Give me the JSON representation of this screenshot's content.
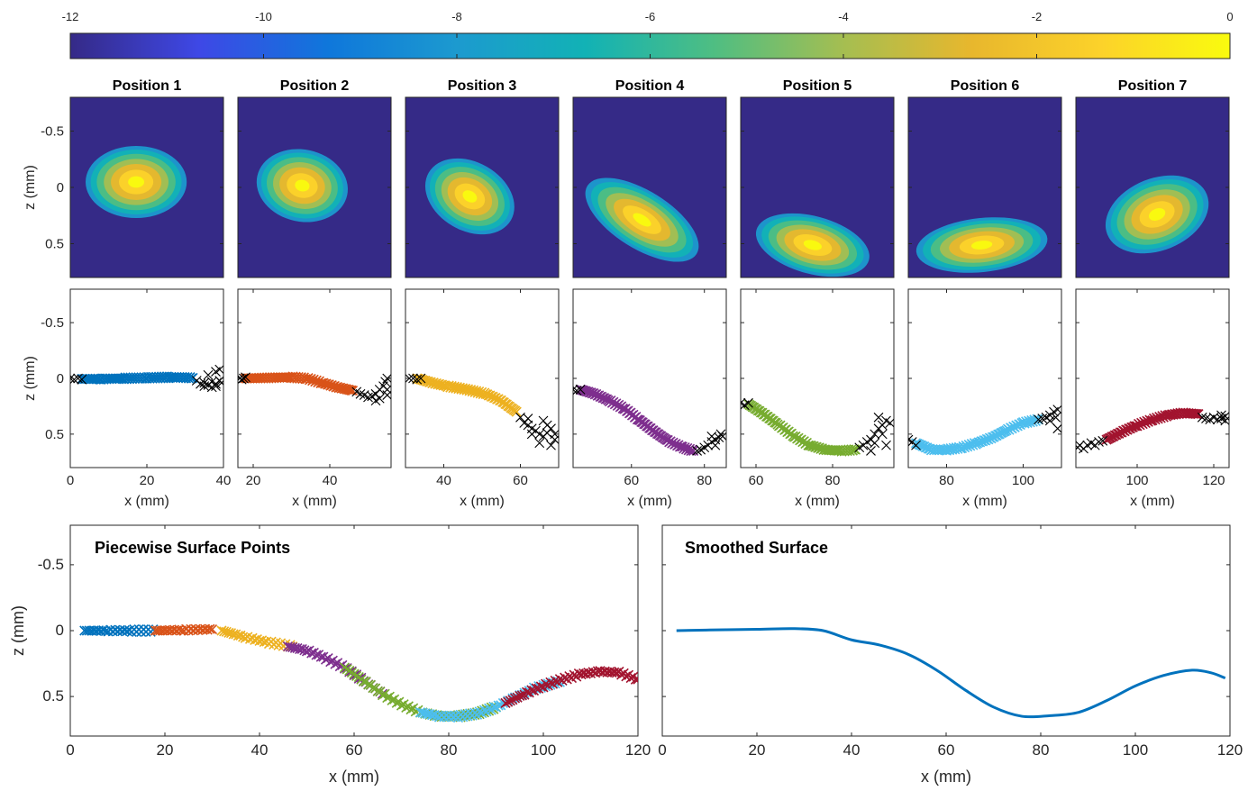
{
  "colorbar": {
    "range": [
      -12,
      0
    ],
    "tick_labels": [
      "-12",
      "-10",
      "-8",
      "-6",
      "-4",
      "-2",
      "0"
    ],
    "colormap": "parula",
    "colormap_stops": [
      "#352a87",
      "#3e48e6",
      "#0f77db",
      "#1c9acf",
      "#12b2b5",
      "#4fbe82",
      "#a5be51",
      "#e8b72d",
      "#fcd22a",
      "#f9fb0e"
    ]
  },
  "top_row": {
    "titles": [
      "Position 1",
      "Position 2",
      "Position 3",
      "Position 4",
      "Position 5",
      "Position 6",
      "Position 7"
    ],
    "ylabel": "z (mm)",
    "ytick_labels": [
      "-0.5",
      "0",
      "0.5"
    ],
    "background_color": "#352a87"
  },
  "middle_row": {
    "ylabel": "z (mm)",
    "xlabel": "x (mm)",
    "ytick_labels": [
      "-0.5",
      "0",
      "0.5"
    ],
    "marker_edge_color": "#000000",
    "series_colors": [
      "#0072bd",
      "#d95319",
      "#edb120",
      "#7e2f8e",
      "#77ac30",
      "#4dbeee",
      "#a2142f"
    ]
  },
  "bottom_left": {
    "title": "Piecewise Surface Points",
    "xlabel": "x (mm)",
    "ylabel": "z (mm)"
  },
  "bottom_right": {
    "title": "Smoothed Surface",
    "xlabel": "x (mm)"
  },
  "chart_data": [
    {
      "type": "heatmap",
      "title": "Position 1",
      "ylabel": "z (mm)",
      "ylim": [
        -0.8,
        0.8
      ],
      "clim": [
        -12,
        0
      ],
      "blob": {
        "center_z": -0.05,
        "shape": "ellipse",
        "orientation": "horizontal"
      }
    },
    {
      "type": "heatmap",
      "title": "Position 2",
      "ylim": [
        -0.8,
        0.8
      ],
      "clim": [
        -12,
        0
      ],
      "blob": {
        "center_z": 0.0,
        "shape": "ellipse",
        "orientation": "slightly tilted"
      }
    },
    {
      "type": "heatmap",
      "title": "Position 3",
      "ylim": [
        -0.8,
        0.8
      ],
      "clim": [
        -12,
        0
      ],
      "blob": {
        "center_z": 0.12,
        "shape": "ellipse",
        "orientation": "tilted down-right"
      }
    },
    {
      "type": "heatmap",
      "title": "Position 4",
      "ylim": [
        -0.8,
        0.8
      ],
      "clim": [
        -12,
        0
      ],
      "blob": {
        "center_z": 0.35,
        "shape": "elongated",
        "orientation": "diagonal down-right"
      }
    },
    {
      "type": "heatmap",
      "title": "Position 5",
      "ylim": [
        -0.8,
        0.8
      ],
      "clim": [
        -12,
        0
      ],
      "blob": {
        "center_z": 0.6,
        "shape": "ellipse",
        "orientation": "bottom"
      }
    },
    {
      "type": "heatmap",
      "title": "Position 6",
      "ylim": [
        -0.8,
        0.8
      ],
      "clim": [
        -12,
        0
      ],
      "blob": {
        "center_z": 0.6,
        "shape": "ellipse",
        "orientation": "bottom, slightly rising right"
      }
    },
    {
      "type": "heatmap",
      "title": "Position 7",
      "ylim": [
        -0.8,
        0.8
      ],
      "clim": [
        -12,
        0
      ],
      "blob": {
        "center_z": 0.35,
        "shape": "ellipse",
        "orientation": "tilted up-right"
      }
    },
    {
      "type": "scatter",
      "xlabel": "x (mm)",
      "ylabel": "z (mm)",
      "xlim": [
        0,
        40
      ],
      "ylim": [
        -0.8,
        0.8
      ],
      "xticks": [
        0,
        20,
        40
      ],
      "xtick_labels": [
        "0",
        "20",
        "40"
      ],
      "yticks": [
        -0.5,
        0,
        0.5
      ],
      "ytick_labels": [
        "-0.5",
        "0",
        "0.5"
      ],
      "color": "#0072bd",
      "points": [
        [
          3,
          0.005
        ],
        [
          8,
          0.005
        ],
        [
          14,
          0.0
        ],
        [
          20,
          -0.005
        ],
        [
          26,
          -0.01
        ],
        [
          32,
          -0.005
        ]
      ],
      "outliers": [
        [
          0,
          0.0
        ],
        [
          1,
          0.01
        ],
        [
          2,
          0.0
        ],
        [
          3,
          0.01
        ],
        [
          33,
          0.02
        ],
        [
          34,
          0.05
        ],
        [
          35,
          0.04
        ],
        [
          36,
          0.06
        ],
        [
          37,
          0.03
        ],
        [
          38,
          0.05
        ],
        [
          39,
          0.02
        ],
        [
          36,
          -0.03
        ],
        [
          38,
          -0.06
        ],
        [
          39,
          -0.08
        ],
        [
          37,
          0.08
        ],
        [
          35,
          0.07
        ],
        [
          38,
          0.07
        ],
        [
          39.5,
          0.04
        ]
      ]
    },
    {
      "type": "scatter",
      "xlabel": "x (mm)",
      "xlim": [
        16,
        56
      ],
      "ylim": [
        -0.8,
        0.8
      ],
      "xticks": [
        20,
        40
      ],
      "xtick_labels": [
        "20",
        "40"
      ],
      "yticks": [
        -0.5,
        0,
        0.5
      ],
      "color": "#d95319",
      "points": [
        [
          18,
          0.0
        ],
        [
          24,
          -0.005
        ],
        [
          30,
          -0.01
        ],
        [
          34,
          0.0
        ],
        [
          38,
          0.04
        ],
        [
          42,
          0.08
        ],
        [
          46,
          0.11
        ]
      ],
      "outliers": [
        [
          16.5,
          0.0
        ],
        [
          17,
          0.01
        ],
        [
          17.5,
          0.0
        ],
        [
          18,
          -0.01
        ],
        [
          47,
          0.12
        ],
        [
          48,
          0.14
        ],
        [
          49,
          0.15
        ],
        [
          50,
          0.17
        ],
        [
          51,
          0.16
        ],
        [
          52,
          0.14
        ],
        [
          53,
          0.1
        ],
        [
          54,
          0.07
        ],
        [
          55,
          0.1
        ],
        [
          54.5,
          0.03
        ],
        [
          55,
          0.0
        ],
        [
          53,
          0.18
        ],
        [
          52,
          0.2
        ],
        [
          55,
          0.15
        ]
      ]
    },
    {
      "type": "scatter",
      "xlabel": "x (mm)",
      "xlim": [
        30,
        70
      ],
      "ylim": [
        -0.8,
        0.8
      ],
      "xticks": [
        40,
        60
      ],
      "xtick_labels": [
        "40",
        "60"
      ],
      "yticks": [
        -0.5,
        0,
        0.5
      ],
      "color": "#edb120",
      "points": [
        [
          33,
          0.0
        ],
        [
          37,
          0.04
        ],
        [
          41,
          0.07
        ],
        [
          46,
          0.1
        ],
        [
          51,
          0.14
        ],
        [
          55,
          0.2
        ],
        [
          59,
          0.3
        ]
      ],
      "outliers": [
        [
          31,
          0.0
        ],
        [
          32,
          0.0
        ],
        [
          33,
          0.01
        ],
        [
          34,
          0.0
        ],
        [
          60,
          0.35
        ],
        [
          61,
          0.4
        ],
        [
          62,
          0.42
        ],
        [
          63,
          0.45
        ],
        [
          64,
          0.47
        ],
        [
          65,
          0.5
        ],
        [
          66,
          0.52
        ],
        [
          67,
          0.49
        ],
        [
          68,
          0.45
        ],
        [
          69,
          0.5
        ],
        [
          66,
          0.38
        ],
        [
          67,
          0.42
        ],
        [
          69,
          0.55
        ],
        [
          68,
          0.6
        ],
        [
          65,
          0.58
        ],
        [
          62,
          0.36
        ],
        [
          63,
          0.5
        ]
      ]
    },
    {
      "type": "scatter",
      "xlabel": "x (mm)",
      "xlim": [
        44,
        86
      ],
      "ylim": [
        -0.8,
        0.8
      ],
      "xticks": [
        60,
        80
      ],
      "xtick_labels": [
        "60",
        "80"
      ],
      "yticks": [
        -0.5,
        0,
        0.5
      ],
      "color": "#7e2f8e",
      "points": [
        [
          46,
          0.1
        ],
        [
          50,
          0.14
        ],
        [
          54,
          0.2
        ],
        [
          58,
          0.27
        ],
        [
          62,
          0.37
        ],
        [
          66,
          0.47
        ],
        [
          70,
          0.56
        ],
        [
          74,
          0.62
        ],
        [
          77,
          0.65
        ]
      ],
      "outliers": [
        [
          44,
          0.1
        ],
        [
          45,
          0.11
        ],
        [
          46,
          0.1
        ],
        [
          78,
          0.65
        ],
        [
          79,
          0.64
        ],
        [
          80,
          0.62
        ],
        [
          81,
          0.6
        ],
        [
          82,
          0.57
        ],
        [
          83,
          0.55
        ],
        [
          84,
          0.53
        ],
        [
          85,
          0.52
        ],
        [
          84.5,
          0.5
        ],
        [
          83,
          0.6
        ],
        [
          82,
          0.52
        ]
      ]
    },
    {
      "type": "scatter",
      "xlabel": "x (mm)",
      "xlim": [
        56,
        96
      ],
      "ylim": [
        -0.8,
        0.8
      ],
      "xticks": [
        60,
        80
      ],
      "xtick_labels": [
        "60",
        "80"
      ],
      "yticks": [
        -0.5,
        0,
        0.5
      ],
      "color": "#77ac30",
      "points": [
        [
          58,
          0.23
        ],
        [
          62,
          0.32
        ],
        [
          66,
          0.42
        ],
        [
          70,
          0.52
        ],
        [
          74,
          0.6
        ],
        [
          78,
          0.64
        ],
        [
          82,
          0.65
        ],
        [
          86,
          0.64
        ]
      ],
      "outliers": [
        [
          56,
          0.22
        ],
        [
          57,
          0.24
        ],
        [
          58,
          0.22
        ],
        [
          87,
          0.62
        ],
        [
          88,
          0.6
        ],
        [
          89,
          0.57
        ],
        [
          90,
          0.55
        ],
        [
          91,
          0.5
        ],
        [
          92,
          0.45
        ],
        [
          93,
          0.42
        ],
        [
          94,
          0.38
        ],
        [
          95,
          0.4
        ],
        [
          93,
          0.5
        ],
        [
          94,
          0.6
        ],
        [
          92,
          0.35
        ],
        [
          91,
          0.58
        ],
        [
          90,
          0.65
        ]
      ]
    },
    {
      "type": "scatter",
      "xlabel": "x (mm)",
      "xlim": [
        70,
        110
      ],
      "ylim": [
        -0.8,
        0.8
      ],
      "xticks": [
        80,
        100
      ],
      "xtick_labels": [
        "80",
        "100"
      ],
      "yticks": [
        -0.5,
        0,
        0.5
      ],
      "color": "#4dbeee",
      "points": [
        [
          72,
          0.58
        ],
        [
          76,
          0.64
        ],
        [
          80,
          0.64
        ],
        [
          84,
          0.62
        ],
        [
          88,
          0.58
        ],
        [
          92,
          0.53
        ],
        [
          96,
          0.46
        ],
        [
          100,
          0.4
        ],
        [
          104,
          0.37
        ]
      ],
      "outliers": [
        [
          70,
          0.55
        ],
        [
          71,
          0.57
        ],
        [
          72,
          0.6
        ],
        [
          104,
          0.37
        ],
        [
          105,
          0.36
        ],
        [
          106,
          0.35
        ],
        [
          107,
          0.33
        ],
        [
          108,
          0.3
        ],
        [
          109,
          0.28
        ],
        [
          108.5,
          0.35
        ],
        [
          107,
          0.38
        ],
        [
          109,
          0.45
        ]
      ]
    },
    {
      "type": "scatter",
      "xlabel": "x (mm)",
      "xlim": [
        84,
        124
      ],
      "ylim": [
        -0.8,
        0.8
      ],
      "xticks": [
        100,
        120
      ],
      "xtick_labels": [
        "100",
        "120"
      ],
      "yticks": [
        -0.5,
        0,
        0.5
      ],
      "color": "#a2142f",
      "points": [
        [
          92,
          0.55
        ],
        [
          96,
          0.48
        ],
        [
          100,
          0.42
        ],
        [
          104,
          0.37
        ],
        [
          108,
          0.33
        ],
        [
          112,
          0.31
        ],
        [
          116,
          0.32
        ]
      ],
      "outliers": [
        [
          84.5,
          0.62
        ],
        [
          85,
          0.6
        ],
        [
          86,
          0.63
        ],
        [
          87,
          0.6
        ],
        [
          88,
          0.58
        ],
        [
          89,
          0.6
        ],
        [
          90,
          0.57
        ],
        [
          91,
          0.56
        ],
        [
          117,
          0.35
        ],
        [
          118,
          0.36
        ],
        [
          119,
          0.37
        ],
        [
          120,
          0.35
        ],
        [
          121,
          0.37
        ],
        [
          122,
          0.36
        ],
        [
          123,
          0.38
        ],
        [
          122,
          0.33
        ],
        [
          123,
          0.34
        ]
      ]
    },
    {
      "type": "scatter",
      "title": "Piecewise Surface Points",
      "xlabel": "x (mm)",
      "ylabel": "z (mm)",
      "xlim": [
        0,
        120
      ],
      "ylim": [
        -0.8,
        0.8
      ],
      "xticks": [
        0,
        20,
        40,
        60,
        80,
        100,
        120
      ],
      "xtick_labels": [
        "0",
        "20",
        "40",
        "60",
        "80",
        "100",
        "120"
      ],
      "yticks": [
        -0.5,
        0,
        0.5
      ],
      "ytick_labels": [
        "-0.5",
        "0",
        "0.5"
      ],
      "series": [
        {
          "color": "#0072bd",
          "points": [
            [
              3,
              0.0
            ],
            [
              8,
              0.0
            ],
            [
              13,
              0.0
            ],
            [
              18,
              0.0
            ]
          ]
        },
        {
          "color": "#d95319",
          "points": [
            [
              18,
              0.0
            ],
            [
              24,
              -0.005
            ],
            [
              30,
              -0.01
            ]
          ]
        },
        {
          "color": "#edb120",
          "points": [
            [
              32,
              0.0
            ],
            [
              37,
              0.05
            ],
            [
              42,
              0.09
            ],
            [
              47,
              0.12
            ]
          ]
        },
        {
          "color": "#7e2f8e",
          "points": [
            [
              46,
              0.12
            ],
            [
              50,
              0.15
            ],
            [
              54,
              0.21
            ],
            [
              58,
              0.28
            ],
            [
              62,
              0.38
            ],
            [
              66,
              0.48
            ]
          ]
        },
        {
          "color": "#77ac30",
          "points": [
            [
              58,
              0.28
            ],
            [
              62,
              0.38
            ],
            [
              66,
              0.48
            ],
            [
              70,
              0.56
            ],
            [
              74,
              0.62
            ],
            [
              78,
              0.65
            ],
            [
              82,
              0.65
            ],
            [
              86,
              0.63
            ],
            [
              90,
              0.58
            ]
          ]
        },
        {
          "color": "#4dbeee",
          "points": [
            [
              74,
              0.62
            ],
            [
              78,
              0.65
            ],
            [
              82,
              0.65
            ],
            [
              86,
              0.63
            ],
            [
              90,
              0.58
            ],
            [
              94,
              0.51
            ],
            [
              98,
              0.44
            ],
            [
              104,
              0.38
            ]
          ]
        },
        {
          "color": "#a2142f",
          "points": [
            [
              92,
              0.55
            ],
            [
              96,
              0.48
            ],
            [
              100,
              0.42
            ],
            [
              104,
              0.37
            ],
            [
              108,
              0.33
            ],
            [
              112,
              0.31
            ],
            [
              116,
              0.32
            ],
            [
              120,
              0.37
            ]
          ]
        }
      ]
    },
    {
      "type": "line",
      "title": "Smoothed Surface",
      "xlabel": "x (mm)",
      "xlim": [
        0,
        120
      ],
      "ylim": [
        -0.8,
        0.8
      ],
      "xticks": [
        0,
        20,
        40,
        60,
        80,
        100,
        120
      ],
      "xtick_labels": [
        "0",
        "20",
        "40",
        "60",
        "80",
        "100",
        "120"
      ],
      "yticks": [
        -0.5,
        0,
        0.5
      ],
      "color": "#0072bd",
      "x": [
        3,
        10,
        20,
        28,
        34,
        40,
        46,
        52,
        58,
        64,
        70,
        76,
        82,
        88,
        94,
        100,
        106,
        112,
        116,
        119
      ],
      "y": [
        0.0,
        -0.005,
        -0.01,
        -0.015,
        0.0,
        0.07,
        0.11,
        0.18,
        0.3,
        0.45,
        0.58,
        0.65,
        0.645,
        0.62,
        0.53,
        0.42,
        0.34,
        0.3,
        0.32,
        0.36
      ]
    }
  ]
}
